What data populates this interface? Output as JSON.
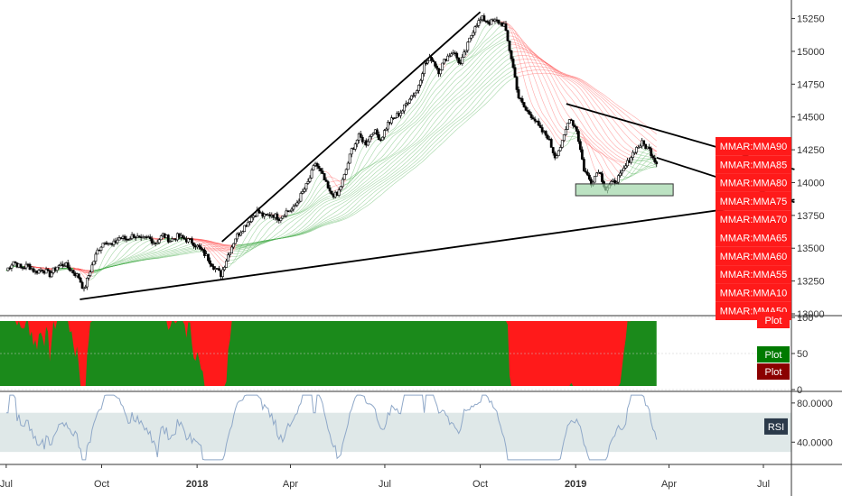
{
  "chart_data": [
    {
      "type": "candlestick",
      "panel": "price",
      "x_start": "2017-07",
      "x_end": "2019-07",
      "ylim": [
        13000,
        15350
      ],
      "y_ticks": [
        13000,
        13250,
        13500,
        13750,
        14000,
        14250,
        14500,
        14750,
        15000,
        15250
      ],
      "y_tick_labels": [
        "13000",
        "13250",
        "13500",
        "13750",
        "14000",
        "14250",
        "14500",
        "14750",
        "15000",
        "15250"
      ],
      "close_series": [
        [
          "2017-07-01",
          13330
        ],
        [
          "2017-07-08",
          13400
        ],
        [
          "2017-07-15",
          13350
        ],
        [
          "2017-07-22",
          13370
        ],
        [
          "2017-07-29",
          13320
        ],
        [
          "2017-08-05",
          13340
        ],
        [
          "2017-08-12",
          13300
        ],
        [
          "2017-08-19",
          13360
        ],
        [
          "2017-08-26",
          13380
        ],
        [
          "2017-09-02",
          13330
        ],
        [
          "2017-09-09",
          13280
        ],
        [
          "2017-09-14",
          13180
        ],
        [
          "2017-09-20",
          13330
        ],
        [
          "2017-09-27",
          13480
        ],
        [
          "2017-10-04",
          13560
        ],
        [
          "2017-10-11",
          13520
        ],
        [
          "2017-10-18",
          13580
        ],
        [
          "2017-10-25",
          13570
        ],
        [
          "2017-11-01",
          13600
        ],
        [
          "2017-11-08",
          13560
        ],
        [
          "2017-11-15",
          13580
        ],
        [
          "2017-11-22",
          13540
        ],
        [
          "2017-11-29",
          13600
        ],
        [
          "2017-12-06",
          13560
        ],
        [
          "2017-12-13",
          13590
        ],
        [
          "2017-12-20",
          13570
        ],
        [
          "2017-12-27",
          13550
        ],
        [
          "2018-01-03",
          13500
        ],
        [
          "2018-01-10",
          13440
        ],
        [
          "2018-01-17",
          13360
        ],
        [
          "2018-01-24",
          13300
        ],
        [
          "2018-01-31",
          13450
        ],
        [
          "2018-02-07",
          13580
        ],
        [
          "2018-02-14",
          13650
        ],
        [
          "2018-02-21",
          13720
        ],
        [
          "2018-02-28",
          13780
        ],
        [
          "2018-03-07",
          13740
        ],
        [
          "2018-03-14",
          13760
        ],
        [
          "2018-03-21",
          13730
        ],
        [
          "2018-03-28",
          13780
        ],
        [
          "2018-04-04",
          13800
        ],
        [
          "2018-04-11",
          13900
        ],
        [
          "2018-04-18",
          14000
        ],
        [
          "2018-04-25",
          14150
        ],
        [
          "2018-05-02",
          14050
        ],
        [
          "2018-05-09",
          13920
        ],
        [
          "2018-05-16",
          13900
        ],
        [
          "2018-05-23",
          14050
        ],
        [
          "2018-05-30",
          14250
        ],
        [
          "2018-06-06",
          14350
        ],
        [
          "2018-06-13",
          14300
        ],
        [
          "2018-06-20",
          14400
        ],
        [
          "2018-06-27",
          14330
        ],
        [
          "2018-07-04",
          14450
        ],
        [
          "2018-07-11",
          14500
        ],
        [
          "2018-07-18",
          14550
        ],
        [
          "2018-07-25",
          14650
        ],
        [
          "2018-08-01",
          14700
        ],
        [
          "2018-08-08",
          14900
        ],
        [
          "2018-08-15",
          14950
        ],
        [
          "2018-08-22",
          14850
        ],
        [
          "2018-08-29",
          14950
        ],
        [
          "2018-09-05",
          15000
        ],
        [
          "2018-09-12",
          14900
        ],
        [
          "2018-09-19",
          15050
        ],
        [
          "2018-09-26",
          15200
        ],
        [
          "2018-10-03",
          15250
        ],
        [
          "2018-10-10",
          15220
        ],
        [
          "2018-10-17",
          15230
        ],
        [
          "2018-10-24",
          15200
        ],
        [
          "2018-10-31",
          14950
        ],
        [
          "2018-11-07",
          14650
        ],
        [
          "2018-11-14",
          14550
        ],
        [
          "2018-11-21",
          14500
        ],
        [
          "2018-11-28",
          14400
        ],
        [
          "2018-12-05",
          14350
        ],
        [
          "2018-12-12",
          14200
        ],
        [
          "2018-12-19",
          14300
        ],
        [
          "2018-12-26",
          14500
        ],
        [
          "2019-01-02",
          14400
        ],
        [
          "2019-01-09",
          14100
        ],
        [
          "2019-01-16",
          14000
        ],
        [
          "2019-01-23",
          14100
        ],
        [
          "2019-01-30",
          13950
        ],
        [
          "2019-02-06",
          14000
        ],
        [
          "2019-02-13",
          14050
        ],
        [
          "2019-02-20",
          14150
        ],
        [
          "2019-02-27",
          14250
        ],
        [
          "2019-03-06",
          14300
        ],
        [
          "2019-03-13",
          14250
        ],
        [
          "2019-03-20",
          14150
        ]
      ],
      "overlays": [
        {
          "kind": "trendline",
          "from": [
            "2018-10-01",
            15300
          ],
          "to": [
            "2018-01-25",
            13550
          ]
        },
        {
          "kind": "trendline",
          "from": [
            "2017-09-10",
            13110
          ],
          "to": [
            "2019-07-31",
            13870
          ]
        },
        {
          "kind": "trendline",
          "from": [
            "2018-12-23",
            14600
          ],
          "to": [
            "2019-07-31",
            14100
          ]
        },
        {
          "kind": "trendline",
          "from": [
            "2019-03-20",
            14190
          ],
          "to": [
            "2019-07-31",
            13850
          ]
        },
        {
          "kind": "zone",
          "from": [
            "2019-01-01",
            13990
          ],
          "to": [
            "2019-04-05",
            13900
          ]
        }
      ],
      "indicator_labels": [
        "MMAR:MMA90",
        "MMAR:MMA85",
        "MMAR:MMA80",
        "MMAR:MMA75",
        "MMAR:MMA70",
        "MMAR:MMA65",
        "MMAR:MMA60",
        "MMAR:MMA55",
        "MMAR:MMA10",
        "MMAR:MMA50"
      ]
    },
    {
      "type": "area",
      "panel": "oscillator",
      "ylim": [
        0,
        100
      ],
      "y_ticks": [
        0,
        50,
        100
      ],
      "y_tick_labels": [
        "0",
        "50",
        "100"
      ],
      "series": [
        {
          "name": "Plot",
          "color": "#008000"
        },
        {
          "name": "Plot",
          "color": "#880000"
        }
      ],
      "top_label": "Plot"
    },
    {
      "type": "line",
      "panel": "rsi",
      "ylim": [
        20,
        90
      ],
      "y_ticks": [
        80,
        40
      ],
      "y_tick_labels": [
        "80.0000",
        "40.0000"
      ],
      "band": [
        30,
        70
      ],
      "series": [
        {
          "name": "RSI"
        }
      ]
    }
  ],
  "x_axis": {
    "ticks": [
      {
        "date": "2017-07-01",
        "label": "Jul",
        "bold": false
      },
      {
        "date": "2017-10-01",
        "label": "Oct",
        "bold": false
      },
      {
        "date": "2018-01-01",
        "label": "2018",
        "bold": true
      },
      {
        "date": "2018-04-01",
        "label": "Apr",
        "bold": false
      },
      {
        "date": "2018-07-01",
        "label": "Jul",
        "bold": false
      },
      {
        "date": "2018-10-01",
        "label": "Oct",
        "bold": false
      },
      {
        "date": "2019-01-01",
        "label": "2019",
        "bold": true
      },
      {
        "date": "2019-04-01",
        "label": "Apr",
        "bold": false
      },
      {
        "date": "2019-07-01",
        "label": "Jul",
        "bold": false
      }
    ]
  },
  "colors": {
    "up": "#000000",
    "down": "#000000",
    "ribbon_bull": "#4caf50",
    "ribbon_bear": "#ff5252",
    "osc_bull": "#1b8a1b",
    "osc_bear": "#ff1a1a",
    "rsi_line": "#8fa8c8",
    "rsi_band": "#dfe8e8",
    "badge_red": "#ff1a1a",
    "badge_green": "#007a00",
    "badge_darkred": "#8b0000",
    "badge_rsi": "#2b3a4a",
    "zone_fill": "#9fd6a8"
  }
}
